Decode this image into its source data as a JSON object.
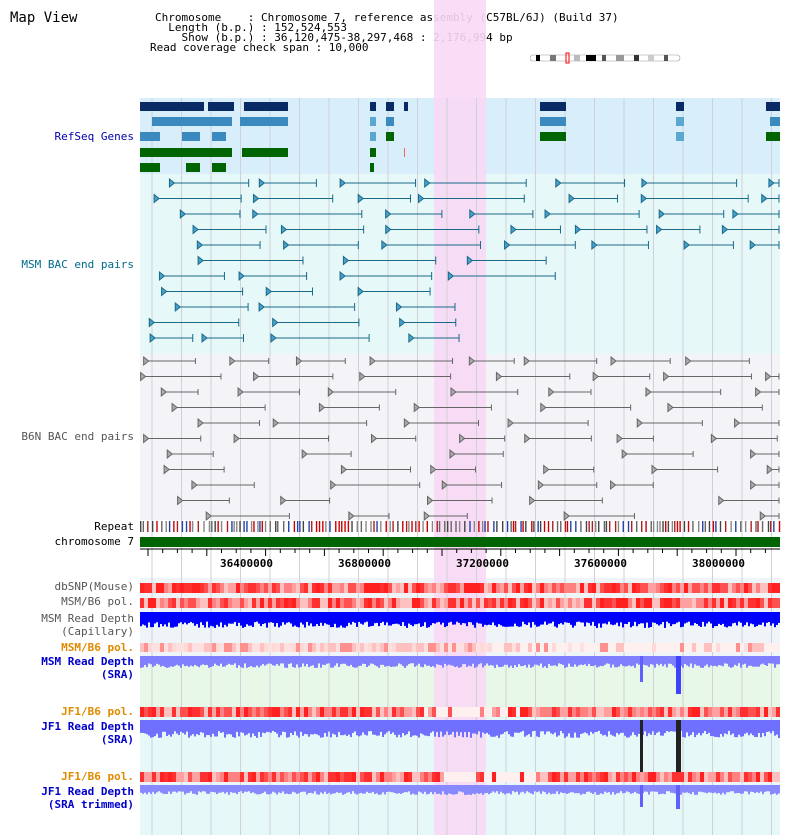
{
  "title": "Map View",
  "info": {
    "chromosome": "Chromosome    : Chromosome 7, reference assembly (C57BL/6J) (Build 37)",
    "length": "  Length (b.p.) : 152,524,553",
    "show": "    Show (b.p.) : 36,120,475-38,297,468 : 2,176,994 bp",
    "coverage": "Read coverage check span : 10,000"
  },
  "tracks": {
    "refseq": "RefSeq Genes",
    "msm_bac": "MSM BAC end pairs",
    "b6n_bac": "B6N BAC end pairs",
    "repeat": "Repeat",
    "chromosome": "chromosome 7",
    "dbsnp": "dbSNP(Mouse)",
    "msm_b6_pol_1": "MSM/B6 pol.",
    "msm_depth_cap_1": "MSM Read Depth",
    "msm_depth_cap_2": "(Capillary)",
    "msm_b6_pol_2": "MSM/B6 pol.",
    "msm_depth_sra_1": "MSM Read Depth",
    "msm_depth_sra_2": "(SRA)",
    "jf1_b6_pol_1": "JF1/B6 pol.",
    "jf1_depth_sra_1": "JF1 Read Depth",
    "jf1_depth_sra_2": "(SRA)",
    "jf1_b6_pol_2": "JF1/B6 pol.",
    "jf1_depth_trim_1": "JF1 Read Depth",
    "jf1_depth_trim_2": "(SRA trimmed)"
  },
  "scale": {
    "ticks": [
      "36400000",
      "36800000",
      "37200000",
      "37600000",
      "38000000"
    ]
  },
  "colors": {
    "highlight": "#f8d8f4",
    "refseq_bg": "#d8eefa",
    "msm_bg": "#e6f8f8",
    "b6n_bg": "#f4f4f8",
    "gene_dark": "#0a2a66",
    "gene_mid": "#3a8abf",
    "gene_green": "#006400",
    "msm_line": "#1a6a8a",
    "b6n_line": "#666666",
    "depth_blue": "#0000ff",
    "depth_light": "#8080ff",
    "snp_red": "#ff3030"
  }
}
